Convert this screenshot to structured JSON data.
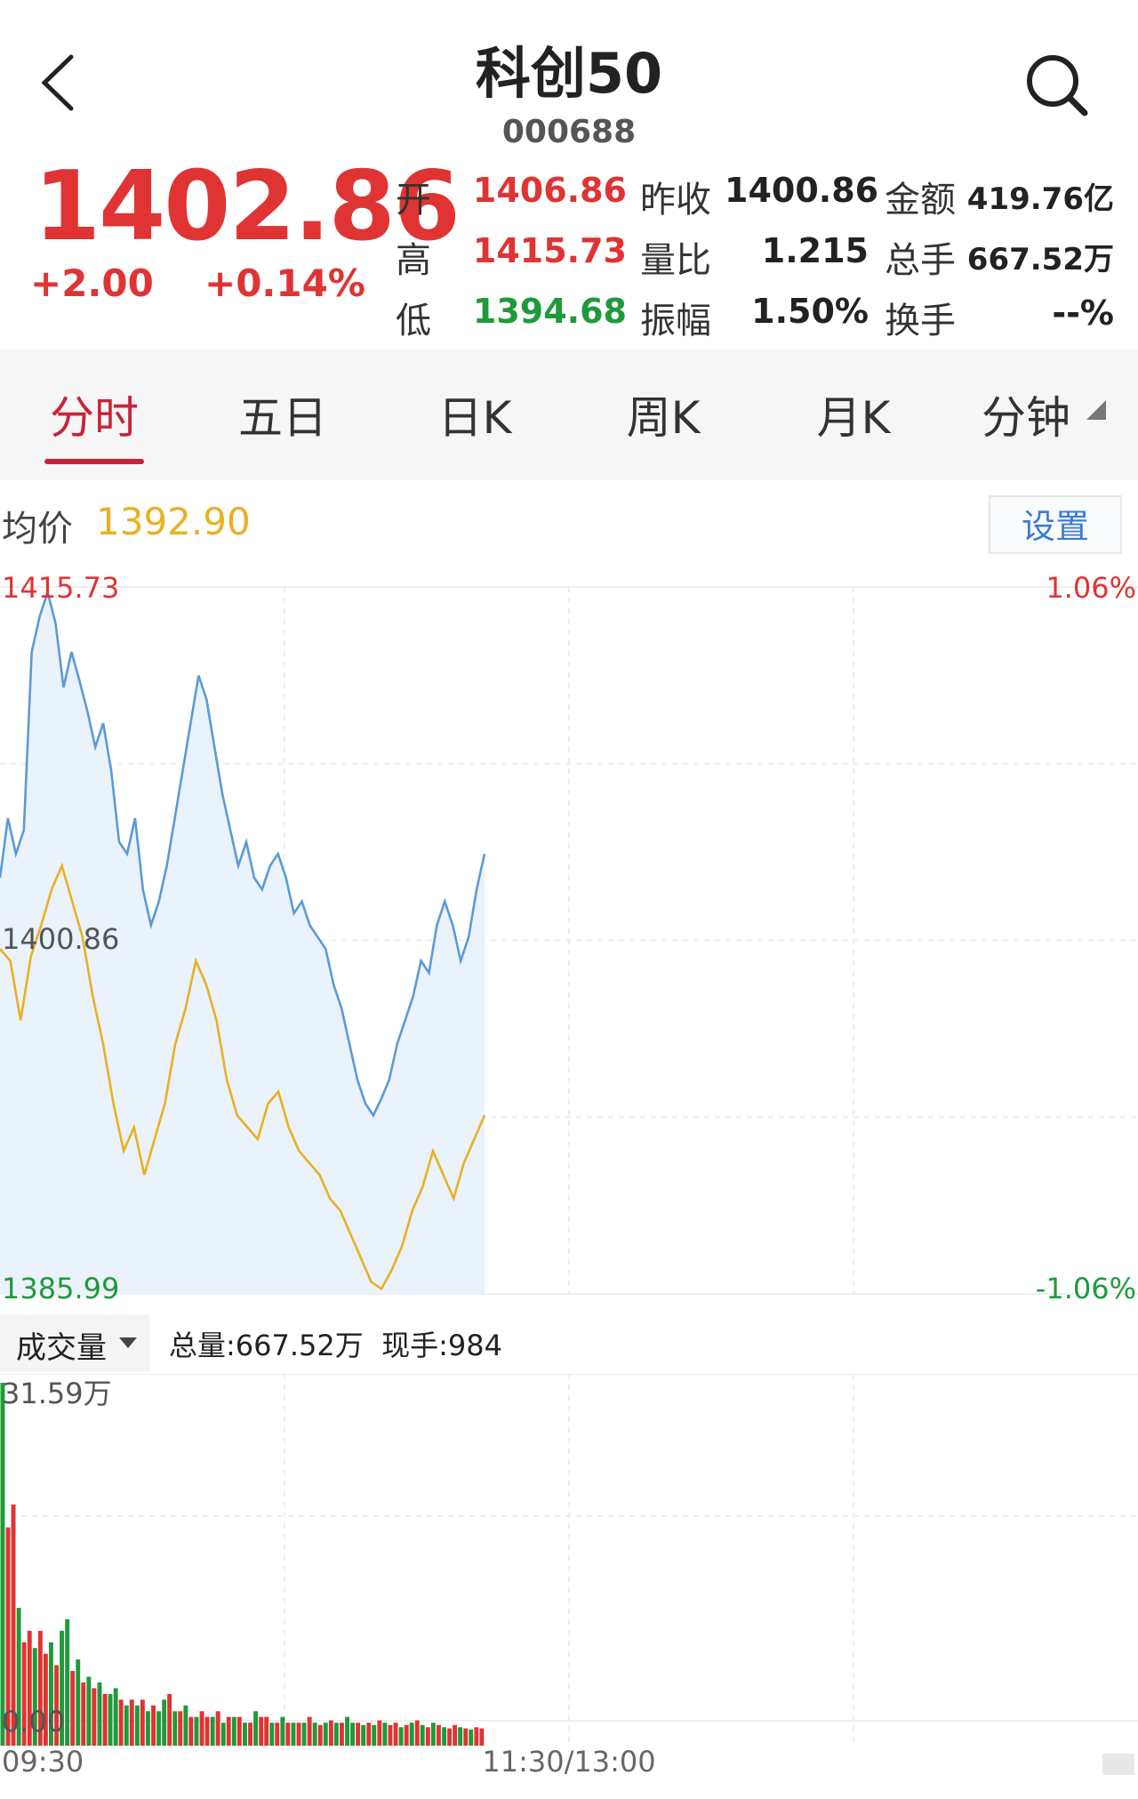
{
  "header": {
    "title": "科创50",
    "code": "000688",
    "back_icon": "chevron-left-icon",
    "search_icon": "search-icon"
  },
  "quote": {
    "price": "1402.86",
    "change": "+2.00",
    "change_pct": "+0.14%",
    "rows": [
      {
        "l1": "开",
        "v1": "1406.86",
        "l2": "昨收",
        "v2": "1400.86",
        "l3": "金额",
        "v3": "419.76亿"
      },
      {
        "l1": "高",
        "v1": "1415.73",
        "l2": "量比",
        "v2": "1.215",
        "l3": "总手",
        "v3": "667.52万"
      },
      {
        "l1": "低",
        "v1": "1394.68",
        "l2": "振幅",
        "v2": "1.50%",
        "l3": "换手",
        "v3": "--%"
      }
    ]
  },
  "tabs": [
    {
      "label": "分时",
      "active": true
    },
    {
      "label": "五日"
    },
    {
      "label": "日K"
    },
    {
      "label": "周K"
    },
    {
      "label": "月K"
    },
    {
      "label": "分钟"
    }
  ],
  "avg": {
    "label": "均价",
    "value": "1392.90"
  },
  "settings_label": "设置",
  "colors": {
    "up": "#e03333",
    "down": "#1f9a3a",
    "price_line": "#5a9bd5",
    "avg_line": "#e9b022",
    "accent": "#c8233a"
  },
  "chart_data": [
    {
      "type": "line",
      "y_max_label": "1415.73",
      "y_mid_label": "1400.86",
      "y_min_label": "1385.99",
      "pct_max_label": "1.06%",
      "pct_min_label": "-1.06%",
      "ylim": [
        1385.99,
        1415.73
      ],
      "series": [
        {
          "values": [
            1403.5,
            1406.0,
            1404.5,
            1405.5,
            1413.0,
            1414.5,
            1415.5,
            1414.2,
            1411.5,
            1413.0,
            1411.8,
            1410.5,
            1409.0,
            1410.0,
            1408.0,
            1405.0,
            1404.5,
            1406.0,
            1403.0,
            1401.5,
            1402.5,
            1404.0,
            1406.0,
            1408.0,
            1410.0,
            1412.0,
            1411.0,
            1409.0,
            1407.0,
            1405.5,
            1404.0,
            1405.0,
            1403.5,
            1403.0,
            1404.0,
            1404.5,
            1403.5,
            1402.0,
            1402.5,
            1401.5,
            1401.0,
            1400.5,
            1399.0,
            1398.0,
            1396.5,
            1395.0,
            1394.0,
            1393.5,
            1394.2,
            1395.0,
            1396.5,
            1397.5,
            1398.5,
            1400.0,
            1399.5,
            1401.5,
            1402.5,
            1401.5,
            1400.0,
            1401.0,
            1403.0,
            1404.5
          ]
        },
        {
          "values": [
            1400.5,
            1400.0,
            1397.5,
            1400.2,
            1401.5,
            1403.0,
            1404.0,
            1402.5,
            1401.0,
            1398.5,
            1396.5,
            1394.0,
            1392.0,
            1393.0,
            1391.0,
            1392.5,
            1394.0,
            1396.5,
            1398.0,
            1400.0,
            1399.0,
            1397.5,
            1395.0,
            1393.5,
            1393.0,
            1392.5,
            1394.0,
            1394.5,
            1393.0,
            1392.0,
            1391.5,
            1391.0,
            1390.0,
            1389.5,
            1388.5,
            1387.5,
            1386.5,
            1386.2,
            1387.0,
            1388.0,
            1389.5,
            1390.5,
            1392.0,
            1391.0,
            1390.0,
            1391.5,
            1392.5,
            1393.5
          ]
        }
      ]
    },
    {
      "type": "bar",
      "volume_label": "成交量",
      "total_label": "总量:667.52万",
      "current_label": "现手:984",
      "y_max_label": "31.59万",
      "y_min_label": "0.00",
      "x_labels": [
        "09:30",
        "11:30/13:00"
      ],
      "values": [
        31.59,
        19,
        21,
        12,
        9,
        10,
        8.5,
        10,
        8,
        9,
        7,
        10,
        11,
        6.5,
        7.5,
        5.5,
        6,
        5,
        5.5,
        4.5,
        4.5,
        5,
        4,
        3.5,
        4,
        3.5,
        4,
        3,
        3.5,
        3,
        4,
        4.5,
        3,
        3,
        3.5,
        2.5,
        2.5,
        3,
        2.5,
        2.5,
        3,
        2,
        2.5,
        2.5,
        2.5,
        2,
        2,
        3,
        2.5,
        2.5,
        2,
        2,
        2.5,
        2,
        2,
        2,
        2,
        2.5,
        2,
        1.8,
        2,
        2.2,
        2,
        2,
        2.5,
        2,
        2,
        1.8,
        2,
        1.8,
        2.2,
        2,
        1.8,
        2,
        1.6,
        1.8,
        2,
        2.2,
        1.8,
        1.6,
        2,
        1.8,
        1.6,
        1.5,
        1.8,
        1.6,
        1.5,
        1.4,
        1.6,
        1.5
      ],
      "up_flags": [
        0,
        1,
        1,
        0,
        1,
        1,
        0,
        1,
        1,
        0,
        1,
        0,
        0,
        1,
        0,
        1,
        0,
        1,
        0,
        1,
        0,
        0,
        1,
        0,
        1,
        0,
        1,
        0,
        1,
        0,
        0,
        1,
        0,
        1,
        0,
        1,
        0,
        1,
        1,
        0,
        1,
        0,
        1,
        0,
        1,
        0,
        1,
        0,
        1,
        1,
        0,
        1,
        0,
        1,
        0,
        1,
        0,
        1,
        0,
        1,
        0,
        1,
        0,
        1,
        0,
        0,
        1,
        0,
        1,
        0,
        1,
        0,
        1,
        1,
        0,
        1,
        0,
        1,
        0,
        1,
        0,
        1,
        0,
        1,
        1,
        0,
        1,
        0,
        1,
        1
      ]
    }
  ]
}
